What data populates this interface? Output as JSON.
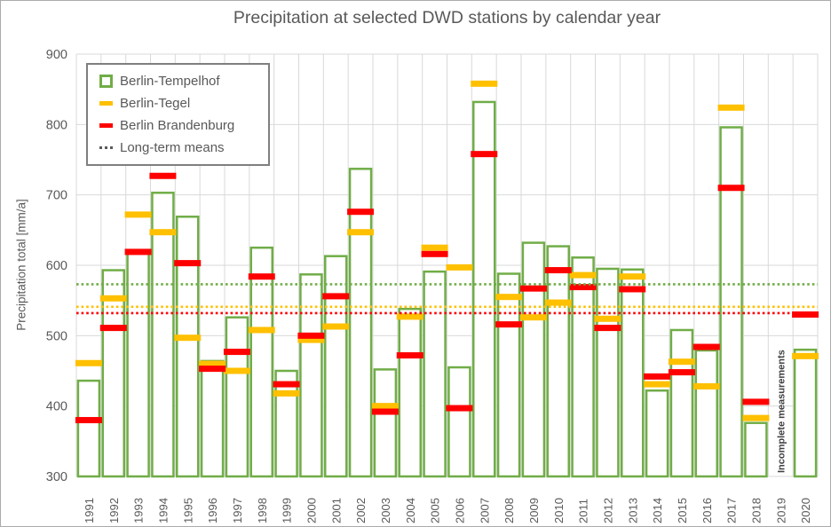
{
  "title": "Precipitation at selected DWD stations by calendar year",
  "y_axis_label": "Precipitation total [mm/a]",
  "legend": {
    "items": [
      {
        "label": "Berlin-Tempelhof",
        "type": "bar-outline",
        "color": "#70AD47"
      },
      {
        "label": "Berlin-Tegel",
        "type": "dash",
        "color": "#FFC000"
      },
      {
        "label": "Berlin Brandenburg",
        "type": "dash",
        "color": "#FF0000"
      },
      {
        "label": "Long-term means",
        "type": "dotted",
        "color": "#595959"
      }
    ]
  },
  "colors": {
    "tempelhof_green": "#70AD47",
    "tegel_yellow": "#FFC000",
    "brandenburg_red": "#FF0000",
    "grid": "#D9D9D9",
    "axis_text": "#595959",
    "annotation_text": "#404040"
  },
  "chart_data": {
    "type": "bar",
    "title": "Precipitation at selected DWD stations by calendar year",
    "xlabel": "",
    "ylabel": "Precipitation total [mm/a]",
    "ylim": [
      300,
      900
    ],
    "yticks": [
      300,
      400,
      500,
      600,
      700,
      800,
      900
    ],
    "grid": true,
    "legend_position": "top-left-inside",
    "categories": [
      1991,
      1992,
      1993,
      1994,
      1995,
      1996,
      1997,
      1998,
      1999,
      2000,
      2001,
      2002,
      2003,
      2004,
      2005,
      2006,
      2007,
      2008,
      2009,
      2010,
      2011,
      2012,
      2013,
      2014,
      2015,
      2016,
      2017,
      2018,
      2019,
      2020
    ],
    "series": [
      {
        "name": "Berlin-Tempelhof",
        "style": "outlined-bar",
        "color": "#70AD47",
        "values": [
          436,
          593,
          617,
          703,
          669,
          464,
          526,
          625,
          450,
          587,
          613,
          737,
          452,
          538,
          591,
          455,
          832,
          588,
          632,
          627,
          611,
          595,
          594,
          422,
          508,
          479,
          796,
          376,
          null,
          480
        ]
      },
      {
        "name": "Berlin-Tegel",
        "style": "tick-mark",
        "color": "#FFC000",
        "values": [
          461,
          553,
          672,
          647,
          497,
          460,
          450,
          508,
          418,
          494,
          513,
          647,
          400,
          527,
          625,
          597,
          858,
          555,
          526,
          547,
          586,
          524,
          584,
          431,
          463,
          428,
          824,
          383,
          null,
          471
        ]
      },
      {
        "name": "Berlin Brandenburg",
        "style": "tick-mark",
        "color": "#FF0000",
        "values": [
          380,
          511,
          619,
          727,
          603,
          453,
          477,
          584,
          431,
          500,
          556,
          676,
          392,
          472,
          616,
          397,
          758,
          516,
          567,
          593,
          569,
          511,
          566,
          442,
          448,
          484,
          710,
          406,
          null,
          530
        ]
      }
    ],
    "long_term_means": [
      {
        "name": "Berlin-Tempelhof",
        "value": 573,
        "color": "#70AD47"
      },
      {
        "name": "Berlin-Tegel",
        "value": 541,
        "color": "#FFC000"
      },
      {
        "name": "Berlin Brandenburg",
        "value": 532,
        "color": "#FF0000"
      }
    ],
    "annotations": [
      {
        "text": "Incomplete measurements",
        "year": 2019,
        "rotation": -90
      }
    ]
  }
}
